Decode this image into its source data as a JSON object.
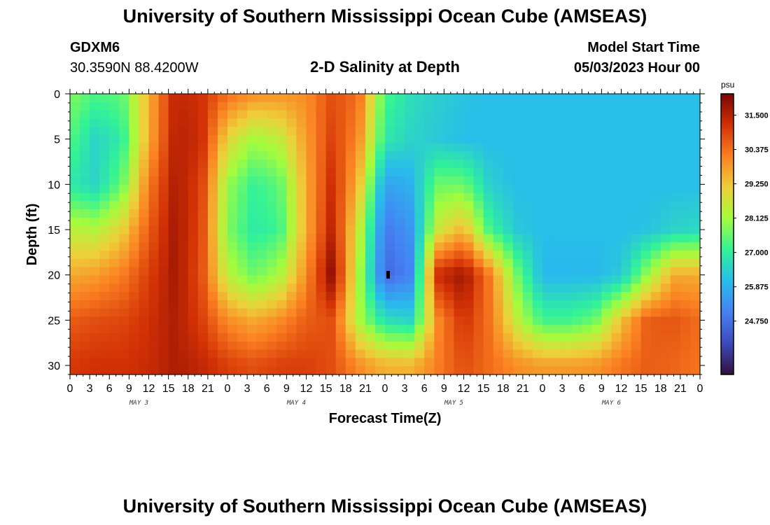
{
  "header": {
    "title": "University of Southern Mississippi Ocean Cube (AMSEAS)",
    "station": "GDXM6",
    "coords": "30.3590N  88.4200W",
    "subtitle": "2-D Salinity at Depth",
    "start_label": "Model Start Time",
    "start_value": "05/03/2023 Hour 00"
  },
  "footer": {
    "title": "University of Southern Mississippi Ocean Cube (AMSEAS)"
  },
  "chart_data": {
    "type": "heatmap",
    "title": "2-D Salinity at Depth",
    "xlabel": "Forecast Time(Z)",
    "ylabel": "Depth (ft)",
    "x_range_hours": [
      0,
      96
    ],
    "ylim": [
      0,
      31
    ],
    "x_ticks": [
      "0",
      "3",
      "6",
      "9",
      "12",
      "15",
      "18",
      "21",
      "0",
      "3",
      "6",
      "9",
      "12",
      "15",
      "18",
      "21",
      "0",
      "3",
      "6",
      "9",
      "12",
      "15",
      "18",
      "21",
      "0",
      "3",
      "6",
      "9",
      "12",
      "15",
      "18",
      "21",
      "0"
    ],
    "day_labels": [
      "MAY 3",
      "MAY 4",
      "MAY 5",
      "MAY 6"
    ],
    "y_ticks": [
      "0",
      "5",
      "10",
      "15",
      "20",
      "25",
      "30"
    ],
    "y_tick_values": [
      0,
      5,
      10,
      15,
      20,
      25,
      30
    ],
    "colorbar": {
      "unit": "psu",
      "min": 23.0,
      "max": 32.2,
      "labels": [
        "31.500",
        "30.375",
        "29.250",
        "28.125",
        "27.000",
        "25.875",
        "24.750"
      ],
      "label_values": [
        31.5,
        30.375,
        29.25,
        28.125,
        27.0,
        25.875,
        24.75
      ],
      "stops": [
        "#30123b",
        "#3e49bb",
        "#4681f4",
        "#28bceb",
        "#32f298",
        "#a4fc3c",
        "#eecf3a",
        "#fb8022",
        "#d23105",
        "#7a0403"
      ]
    },
    "grid": {
      "times": [
        0,
        4,
        8,
        12,
        16,
        20,
        24,
        28,
        32,
        36,
        40,
        44,
        48,
        52,
        56,
        60,
        64,
        68,
        72,
        76,
        80,
        84,
        88,
        92,
        96
      ],
      "depths": [
        0,
        5,
        10,
        15,
        20,
        25,
        30
      ],
      "values": [
        [
          27.8,
          27.3,
          27.5,
          29.5,
          31.4,
          31.2,
          30.4,
          30.0,
          29.9,
          30.0,
          30.8,
          30.4,
          27.3,
          26.7,
          26.4,
          26.2,
          26.1,
          26.1,
          26.1,
          26.1,
          26.1,
          26.1,
          26.1,
          26.1,
          26.1
        ],
        [
          27.4,
          26.5,
          27.0,
          29.6,
          31.5,
          31.3,
          29.0,
          28.1,
          28.5,
          29.8,
          31.0,
          30.0,
          26.9,
          26.5,
          26.3,
          26.1,
          26.1,
          26.1,
          26.1,
          26.1,
          26.1,
          26.1,
          26.1,
          26.1,
          26.1
        ],
        [
          26.9,
          26.5,
          27.6,
          30.2,
          31.6,
          31.0,
          28.0,
          27.1,
          27.5,
          29.6,
          31.3,
          29.4,
          25.6,
          25.9,
          27.6,
          27.6,
          26.4,
          26.1,
          26.1,
          26.1,
          26.1,
          26.1,
          26.1,
          26.1,
          26.1
        ],
        [
          28.4,
          28.3,
          29.1,
          30.6,
          31.7,
          30.9,
          27.8,
          26.9,
          27.2,
          29.6,
          31.5,
          28.6,
          24.9,
          25.4,
          28.6,
          29.5,
          27.2,
          26.3,
          26.1,
          26.1,
          26.1,
          26.1,
          26.2,
          26.5,
          26.6
        ],
        [
          29.6,
          29.8,
          30.2,
          31.0,
          31.7,
          30.8,
          28.4,
          27.6,
          28.2,
          30.0,
          32.0,
          28.2,
          24.6,
          25.1,
          31.3,
          31.8,
          30.2,
          27.7,
          26.0,
          26.0,
          26.0,
          26.3,
          28.0,
          29.6,
          29.6
        ],
        [
          30.6,
          30.8,
          30.9,
          31.2,
          31.6,
          31.0,
          30.0,
          29.6,
          30.0,
          30.6,
          30.8,
          28.2,
          26.7,
          26.5,
          30.0,
          31.2,
          30.3,
          28.5,
          27.2,
          27.2,
          27.6,
          29.3,
          30.6,
          30.7,
          30.4
        ],
        [
          31.1,
          31.2,
          31.2,
          31.3,
          31.6,
          31.4,
          31.0,
          30.8,
          31.0,
          31.0,
          30.8,
          30.0,
          29.5,
          29.5,
          30.2,
          30.8,
          30.4,
          30.0,
          29.8,
          29.8,
          29.9,
          30.3,
          30.6,
          30.5,
          30.3
        ]
      ]
    }
  }
}
